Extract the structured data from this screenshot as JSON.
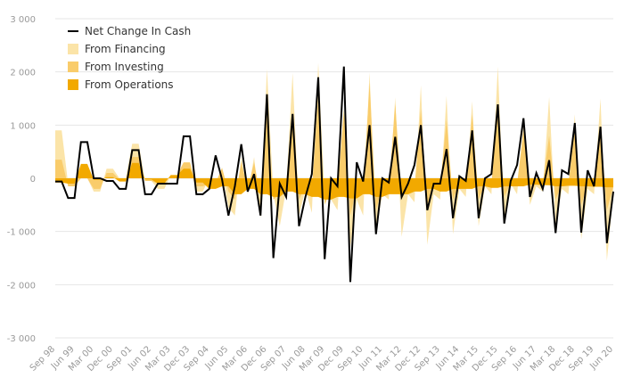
{
  "chart_data": {
    "type": "area",
    "title": "",
    "xlabel": "",
    "ylabel": "",
    "ylim": [
      -3000,
      3000
    ],
    "yticks": [
      3000,
      2000,
      1000,
      0,
      -1000,
      -2000,
      -3000
    ],
    "ytick_labels": [
      "3 000",
      "2 000",
      "1 000",
      "0",
      "-1 000",
      "-2 000",
      "-3 000"
    ],
    "x_tick_labels": [
      "Sep 98",
      "Jun 99",
      "Mar 00",
      "Dec 00",
      "Sep 01",
      "Jun 02",
      "Mar 03",
      "Dec 03",
      "Sep 04",
      "Jun 05",
      "Mar 06",
      "Dec 06",
      "Sep 07",
      "Jun 08",
      "Mar 09",
      "Dec 09",
      "Sep 10",
      "Jun 11",
      "Mar 12",
      "Dec 12",
      "Sep 13",
      "Jun 14",
      "Mar 15",
      "Dec 15",
      "Sep 16",
      "Jun 17",
      "Mar 18",
      "Dec 18",
      "Sep 19",
      "Jun 20"
    ],
    "legend_position": "top-left",
    "grid": true,
    "colors": {
      "net_change": "#000000",
      "financing": "#fbe4a8",
      "investing": "#f9cc6b",
      "operations": "#f2a900"
    },
    "series": [
      {
        "name": "Net Change In Cash",
        "kind": "line",
        "values": [
          -60,
          -60,
          -370,
          -370,
          680,
          680,
          0,
          0,
          -50,
          -50,
          -200,
          -200,
          530,
          530,
          -300,
          -300,
          -100,
          -100,
          -100,
          -100,
          790,
          790,
          -300,
          -300,
          -200,
          430,
          -20,
          -700,
          -150,
          640,
          -250,
          80,
          -700,
          1580,
          -1500,
          -100,
          -350,
          1210,
          -900,
          -350,
          80,
          1900,
          -1520,
          0,
          -150,
          2100,
          -1950,
          300,
          -60,
          1000,
          -1050,
          0,
          -80,
          780,
          -350,
          -100,
          250,
          1000,
          -600,
          -100,
          -100,
          550,
          -750,
          40,
          -50,
          900,
          -750,
          0,
          80,
          1390,
          -850,
          -50,
          250,
          1130,
          -350,
          100,
          -200,
          340,
          -1030,
          150,
          80,
          1040,
          -1020,
          150,
          -150,
          970,
          -1220,
          -250
        ]
      },
      {
        "name": "From Financing",
        "kind": "area",
        "values": [
          900,
          900,
          -100,
          -100,
          0,
          0,
          -250,
          -250,
          180,
          180,
          0,
          0,
          650,
          650,
          -50,
          -50,
          -200,
          -200,
          50,
          50,
          250,
          250,
          -250,
          -250,
          0,
          -50,
          150,
          -550,
          -700,
          400,
          -300,
          400,
          -750,
          2050,
          -300,
          -900,
          -200,
          1980,
          -700,
          -200,
          -650,
          2170,
          -350,
          -400,
          -600,
          1200,
          -1300,
          -400,
          -700,
          1990,
          -950,
          -300,
          -400,
          1520,
          -1100,
          -300,
          -450,
          1750,
          -1250,
          -300,
          -400,
          1550,
          -1050,
          -200,
          -350,
          1450,
          -900,
          -150,
          -300,
          2100,
          -800,
          -100,
          -300,
          1000,
          -500,
          -150,
          -250,
          1530,
          -850,
          -200,
          -300,
          1200,
          -1150,
          -200,
          -300,
          1500,
          -1550,
          -300
        ]
      },
      {
        "name": "From Investing",
        "kind": "area",
        "values": [
          350,
          350,
          -150,
          -150,
          0,
          0,
          -200,
          -200,
          100,
          100,
          -20,
          -20,
          400,
          400,
          -50,
          -50,
          -100,
          -100,
          60,
          60,
          300,
          300,
          -150,
          -150,
          -100,
          -100,
          200,
          -250,
          -400,
          300,
          -200,
          300,
          -350,
          1200,
          -400,
          -300,
          -150,
          1250,
          -400,
          -150,
          -200,
          1500,
          -500,
          -200,
          -250,
          1300,
          -700,
          -150,
          -250,
          1800,
          -600,
          -150,
          -200,
          1400,
          -400,
          -150,
          -200,
          1300,
          -500,
          -150,
          -150,
          1100,
          -400,
          -100,
          -150,
          1200,
          -400,
          -100,
          -100,
          1300,
          -350,
          -80,
          -100,
          900,
          -300,
          -80,
          -100,
          800,
          -400,
          -100,
          -100,
          900,
          -500,
          -100,
          -120,
          1000,
          -600,
          -150
        ]
      },
      {
        "name": "From Operations",
        "kind": "area",
        "values": [
          -80,
          -80,
          -100,
          -100,
          270,
          270,
          -30,
          -30,
          20,
          20,
          -60,
          -60,
          290,
          290,
          -20,
          -20,
          -100,
          -100,
          60,
          60,
          180,
          180,
          -80,
          -80,
          -200,
          -200,
          -150,
          -150,
          -300,
          -300,
          -200,
          -200,
          -300,
          -300,
          -350,
          -350,
          -250,
          -250,
          -300,
          -300,
          -350,
          -350,
          -400,
          -400,
          -350,
          -350,
          -380,
          -380,
          -300,
          -300,
          -350,
          -350,
          -300,
          -300,
          -300,
          -300,
          -250,
          -250,
          -200,
          -200,
          -250,
          -250,
          -200,
          -200,
          -200,
          -200,
          -150,
          -150,
          -180,
          -180,
          -150,
          -150,
          -150,
          -150,
          -120,
          -120,
          -130,
          -130,
          -150,
          -150,
          -140,
          -140,
          -150,
          -150,
          -160,
          -160,
          -170,
          -170
        ]
      }
    ]
  }
}
